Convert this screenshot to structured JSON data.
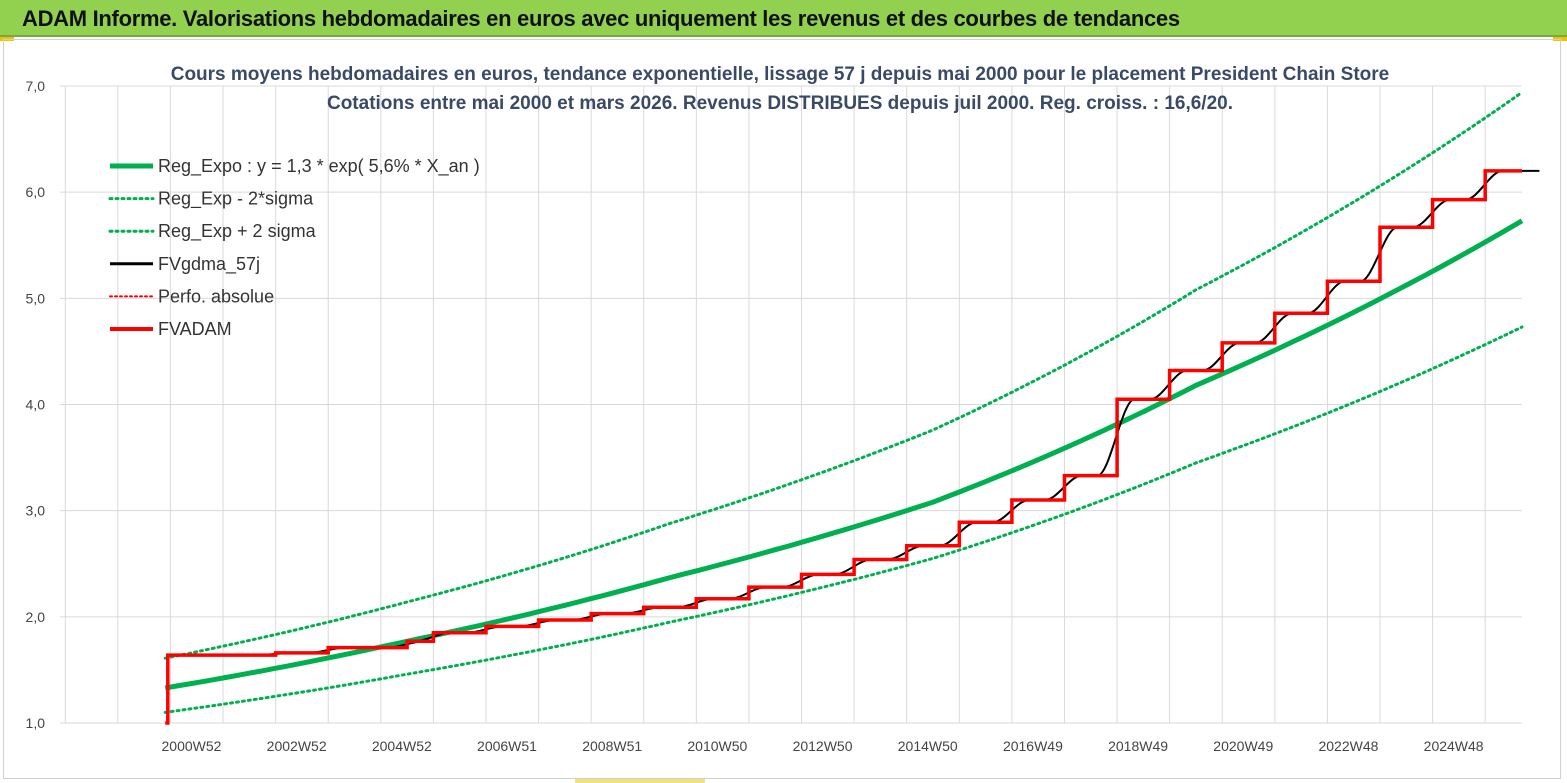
{
  "header": {
    "title": "ADAM Informe. Valorisations hebdomadaires en euros avec uniquement les revenus et des courbes de tendances"
  },
  "colors": {
    "banner": "#92d050",
    "green_series": "#00b050",
    "red_series": "#ff0000",
    "black_series": "#000000",
    "grid": "#d9d9d9"
  },
  "chart_data": {
    "type": "line",
    "title_line1": "Cours moyens hebdomadaires en euros, tendance exponentielle, lissage 57 j depuis mai 2000 pour le placement President Chain Store",
    "title_line2": "Cotations entre mai 2000 et mars 2026.  Revenus DISTRIBUES depuis juil 2000.  Reg. croiss. : 16,6/20.",
    "ylim": [
      1.0,
      7.0
    ],
    "yticks": [
      "1,0",
      "2,0",
      "3,0",
      "4,0",
      "5,0",
      "6,0",
      "7,0"
    ],
    "ytick_values": [
      1,
      2,
      3,
      4,
      5,
      6,
      7
    ],
    "xlim": [
      1998.4,
      2026.2
    ],
    "xticks": [
      {
        "label": "2000W52",
        "year": 2000.9
      },
      {
        "label": "2002W52",
        "year": 2002.9
      },
      {
        "label": "2004W52",
        "year": 2004.9
      },
      {
        "label": "2006W51",
        "year": 2006.9
      },
      {
        "label": "2008W51",
        "year": 2008.9
      },
      {
        "label": "2010W50",
        "year": 2010.9
      },
      {
        "label": "2012W50",
        "year": 2012.9
      },
      {
        "label": "2014W50",
        "year": 2014.9
      },
      {
        "label": "2016W49",
        "year": 2016.9
      },
      {
        "label": "2018W49",
        "year": 2018.9
      },
      {
        "label": "2020W49",
        "year": 2020.9
      },
      {
        "label": "2022W48",
        "year": 2022.9
      },
      {
        "label": "2024W48",
        "year": 2024.9
      }
    ],
    "grid": true,
    "legend_position": "top-left",
    "series": [
      {
        "name": "Reg_Expo : y = 1,3 * exp( 5,6% *  X_an )",
        "style": "solid-green-thick",
        "x": [
          2000.4,
          2005,
          2010,
          2015,
          2020,
          2026.2
        ],
        "y": [
          1.33,
          1.77,
          2.37,
          3.08,
          4.18,
          5.73
        ]
      },
      {
        "name": "Reg_Exp - 2*sigma",
        "style": "dotted-green",
        "x": [
          2000.4,
          2005,
          2010,
          2015,
          2020,
          2026.2
        ],
        "y": [
          1.1,
          1.46,
          1.95,
          2.55,
          3.45,
          4.73
        ]
      },
      {
        "name": "Reg_Exp + 2 sigma",
        "style": "dotted-green",
        "x": [
          2000.4,
          2005,
          2010,
          2015,
          2020,
          2026.2
        ],
        "y": [
          1.61,
          2.14,
          2.88,
          3.76,
          5.08,
          6.94
        ]
      },
      {
        "name": "FVgdma_57j",
        "style": "solid-black-thin"
      },
      {
        "name": "Perfo. absolue",
        "style": "dotted-red"
      },
      {
        "name": "FVADAM",
        "style": "solid-red-thick",
        "x": [
          2000.4,
          2000.45,
          2002.5,
          2003.5,
          2005.0,
          2005.5,
          2006.5,
          2007.5,
          2008.5,
          2009.5,
          2010.5,
          2011.5,
          2012.5,
          2013.5,
          2014.5,
          2015.5,
          2016.5,
          2017.5,
          2018.5,
          2019.5,
          2020.5,
          2021.5,
          2022.5,
          2023.5,
          2024.5,
          2025.5,
          2026.2
        ],
        "y": [
          1.0,
          1.64,
          1.66,
          1.71,
          1.77,
          1.85,
          1.91,
          1.97,
          2.03,
          2.09,
          2.17,
          2.28,
          2.4,
          2.54,
          2.67,
          2.89,
          3.1,
          3.33,
          4.05,
          4.32,
          4.58,
          4.86,
          5.16,
          5.67,
          5.93,
          6.2,
          6.2
        ]
      }
    ]
  }
}
